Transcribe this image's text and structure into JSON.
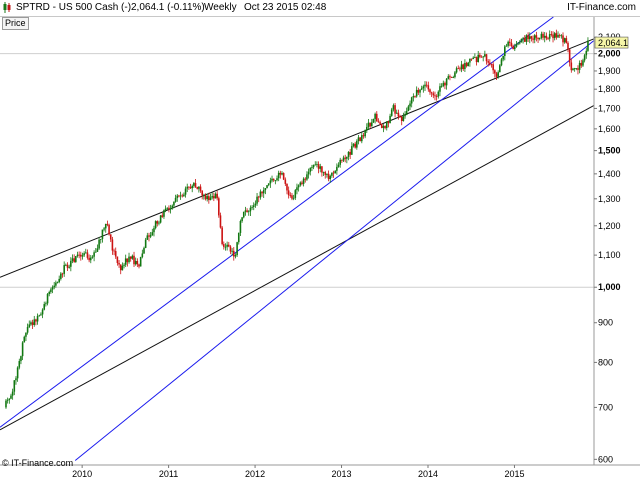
{
  "header": {
    "symbol": "SPTRD - US 500 Cash (-)",
    "quote": "2,064.1 (-0.11%)",
    "period": "Weekly",
    "datetime": "Oct 23 2015 02:48",
    "brand": "IT-Finance.com",
    "colors": {
      "up_icon": "#1a7a1a",
      "down_icon": "#c01818"
    }
  },
  "panel_label": "Price",
  "footer": {
    "credit": "© IT-Finance.com"
  },
  "chart_data": {
    "type": "candlestick",
    "title": "",
    "last_price_label": "2,064.1",
    "y_scale": "log",
    "ylim": [
      590,
      2230
    ],
    "y_ticks": [
      600,
      700,
      800,
      900,
      1000,
      1100,
      1200,
      1300,
      1400,
      1500,
      1600,
      1700,
      1800,
      1900,
      2000,
      2100
    ],
    "y_tick_labels": [
      "600",
      "700",
      "800",
      "900",
      "1,000",
      "1,100",
      "1,200",
      "1,300",
      "1,400",
      "1,500",
      "1,600",
      "1,700",
      "1,800",
      "1,900",
      "2,000",
      "2,100"
    ],
    "y_bold_ticks": [
      "1,000",
      "1,500",
      "2,000"
    ],
    "x_ticks": [
      "2010",
      "2011",
      "2012",
      "2013",
      "2014",
      "2015"
    ],
    "x_tick_dates": [
      2010.0,
      2011.0,
      2012.0,
      2013.0,
      2014.0,
      2015.0
    ],
    "xlim": [
      2009.05,
      2015.92
    ],
    "grid": "horizontal at 1,000 and 2,000",
    "colors": {
      "up": "#117711",
      "down": "#cc1111",
      "channel": "#1a1aee",
      "trend": "#111111"
    },
    "keypoints": [
      {
        "date": 2009.1,
        "price": 700
      },
      {
        "date": 2009.2,
        "price": 740
      },
      {
        "date": 2009.35,
        "price": 880
      },
      {
        "date": 2009.5,
        "price": 920
      },
      {
        "date": 2009.65,
        "price": 1000
      },
      {
        "date": 2009.8,
        "price": 1060
      },
      {
        "date": 2010.0,
        "price": 1110
      },
      {
        "date": 2010.1,
        "price": 1080
      },
      {
        "date": 2010.28,
        "price": 1210
      },
      {
        "date": 2010.35,
        "price": 1120
      },
      {
        "date": 2010.45,
        "price": 1060
      },
      {
        "date": 2010.55,
        "price": 1100
      },
      {
        "date": 2010.65,
        "price": 1060
      },
      {
        "date": 2010.75,
        "price": 1160
      },
      {
        "date": 2010.95,
        "price": 1250
      },
      {
        "date": 2011.15,
        "price": 1320
      },
      {
        "date": 2011.3,
        "price": 1360
      },
      {
        "date": 2011.45,
        "price": 1300
      },
      {
        "date": 2011.55,
        "price": 1320
      },
      {
        "date": 2011.62,
        "price": 1140
      },
      {
        "date": 2011.7,
        "price": 1120
      },
      {
        "date": 2011.77,
        "price": 1100
      },
      {
        "date": 2011.85,
        "price": 1240
      },
      {
        "date": 2011.95,
        "price": 1260
      },
      {
        "date": 2012.15,
        "price": 1370
      },
      {
        "date": 2012.3,
        "price": 1400
      },
      {
        "date": 2012.42,
        "price": 1300
      },
      {
        "date": 2012.55,
        "price": 1370
      },
      {
        "date": 2012.7,
        "price": 1450
      },
      {
        "date": 2012.85,
        "price": 1390
      },
      {
        "date": 2012.95,
        "price": 1430
      },
      {
        "date": 2013.15,
        "price": 1520
      },
      {
        "date": 2013.38,
        "price": 1660
      },
      {
        "date": 2013.5,
        "price": 1600
      },
      {
        "date": 2013.6,
        "price": 1700
      },
      {
        "date": 2013.7,
        "price": 1640
      },
      {
        "date": 2013.8,
        "price": 1750
      },
      {
        "date": 2013.95,
        "price": 1820
      },
      {
        "date": 2014.08,
        "price": 1760
      },
      {
        "date": 2014.25,
        "price": 1870
      },
      {
        "date": 2014.5,
        "price": 1960
      },
      {
        "date": 2014.65,
        "price": 1990
      },
      {
        "date": 2014.8,
        "price": 1880
      },
      {
        "date": 2014.9,
        "price": 2060
      },
      {
        "date": 2015.0,
        "price": 2030
      },
      {
        "date": 2015.15,
        "price": 2100
      },
      {
        "date": 2015.35,
        "price": 2110
      },
      {
        "date": 2015.5,
        "price": 2100
      },
      {
        "date": 2015.6,
        "price": 2080
      },
      {
        "date": 2015.66,
        "price": 1890
      },
      {
        "date": 2015.72,
        "price": 1920
      },
      {
        "date": 2015.78,
        "price": 1940
      },
      {
        "date": 2015.85,
        "price": 2064
      }
    ],
    "trendlines": [
      {
        "name": "",
        "color": "#111111",
        "from": {
          "date": 2009.05,
          "price": 1030
        },
        "to": {
          "date": 2015.92,
          "price": 2090
        }
      },
      {
        "name": "",
        "color": "#111111",
        "from": {
          "date": 2009.05,
          "price": 655
        },
        "to": {
          "date": 2015.92,
          "price": 1715
        }
      },
      {
        "name": "",
        "color": "#1a1aee",
        "from": {
          "date": 2009.05,
          "price": 660
        },
        "to": {
          "date": 2015.45,
          "price": 2230
        }
      },
      {
        "name": "",
        "color": "#1a1aee",
        "from": {
          "date": 2009.92,
          "price": 598
        },
        "to": {
          "date": 2015.92,
          "price": 2080
        }
      }
    ]
  }
}
